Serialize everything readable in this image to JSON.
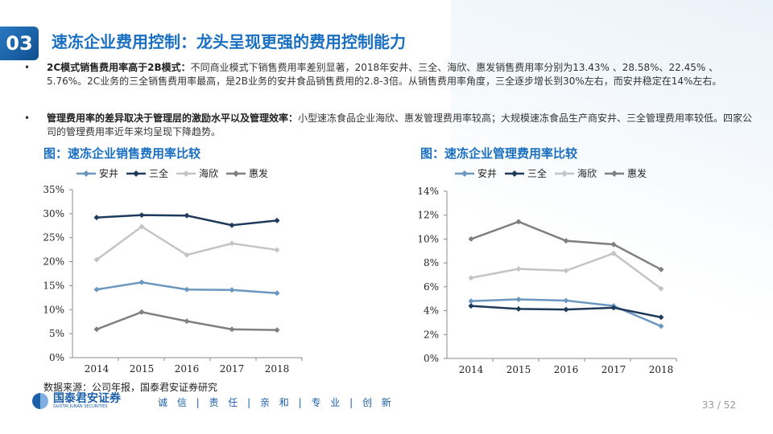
{
  "section_number": "03",
  "title": "速冻企业费用控制：龙头呈现更强的费用控制能力",
  "bullets": [
    {
      "bold": "2C模式销售费用率高于2B模式：",
      "text": "不同商业模式下销售费用率差别显著，2018年安井、三全、海欣、惠发销售费用率分别为13.43% 、28.58%、22.45% 、5.76%。2C业务的三全销售费用率最高，是2B业务的安井食品销售费用的2.8-3倍。从销售费用率角度，三全逐步增长到30%左右，而安井稳定在14%左右。"
    },
    {
      "bold": "管理费用率的差异取决于管理层的激励水平以及管理效率：",
      "text": "小型速冻食品企业海欣、惠发管理费用率较高；大规模速冻食品生产商安井、三全管理费用率较低。四家公司的管理费用率近年来均呈现下降趋势。"
    }
  ],
  "bullet_symbol": "•",
  "source": "数据来源：公司年报，国泰君安证券研究",
  "logo": {
    "cn": "国泰君安证券",
    "en": "GUOTAI JUNAN SECURITIES"
  },
  "motto": "诚 信 | 责 任 | 亲 和 | 专 业 | 创 新",
  "page": "33 / 52",
  "colors": {
    "安井": "#6a97c0",
    "三全": "#1f3a5a",
    "海欣": "#c4c4c4",
    "惠发": "#7f7f7f"
  },
  "chart_data": [
    {
      "type": "line",
      "title": "图：速冻企业销售费用率比较",
      "categories": [
        "2014",
        "2015",
        "2016",
        "2017",
        "2018"
      ],
      "ylim": [
        0,
        35
      ],
      "yticks": [
        "0%",
        "5%",
        "10%",
        "15%",
        "20%",
        "25%",
        "30%",
        "35%"
      ],
      "legend": "top",
      "series": [
        {
          "name": "安井",
          "values": [
            14.2,
            15.7,
            14.2,
            14.1,
            13.43
          ]
        },
        {
          "name": "三全",
          "values": [
            29.2,
            29.7,
            29.6,
            27.6,
            28.58
          ]
        },
        {
          "name": "海欣",
          "values": [
            20.4,
            27.3,
            21.4,
            23.8,
            22.45
          ]
        },
        {
          "name": "惠发",
          "values": [
            5.9,
            9.5,
            7.6,
            5.9,
            5.76
          ]
        }
      ]
    },
    {
      "type": "line",
      "title": "图：速冻企业管理费用率比较",
      "categories": [
        "2014",
        "2015",
        "2016",
        "2017",
        "2018"
      ],
      "ylim": [
        0,
        14
      ],
      "yticks": [
        "0%",
        "2%",
        "4%",
        "6%",
        "8%",
        "10%",
        "12%",
        "14%"
      ],
      "legend": "top",
      "series": [
        {
          "name": "安井",
          "values": [
            4.8,
            4.95,
            4.85,
            4.4,
            2.7
          ]
        },
        {
          "name": "三全",
          "values": [
            4.4,
            4.15,
            4.1,
            4.25,
            3.45
          ]
        },
        {
          "name": "海欣",
          "values": [
            6.75,
            7.5,
            7.35,
            8.8,
            5.85
          ]
        },
        {
          "name": "惠发",
          "values": [
            10.0,
            11.45,
            9.85,
            9.55,
            7.45
          ]
        }
      ]
    }
  ]
}
